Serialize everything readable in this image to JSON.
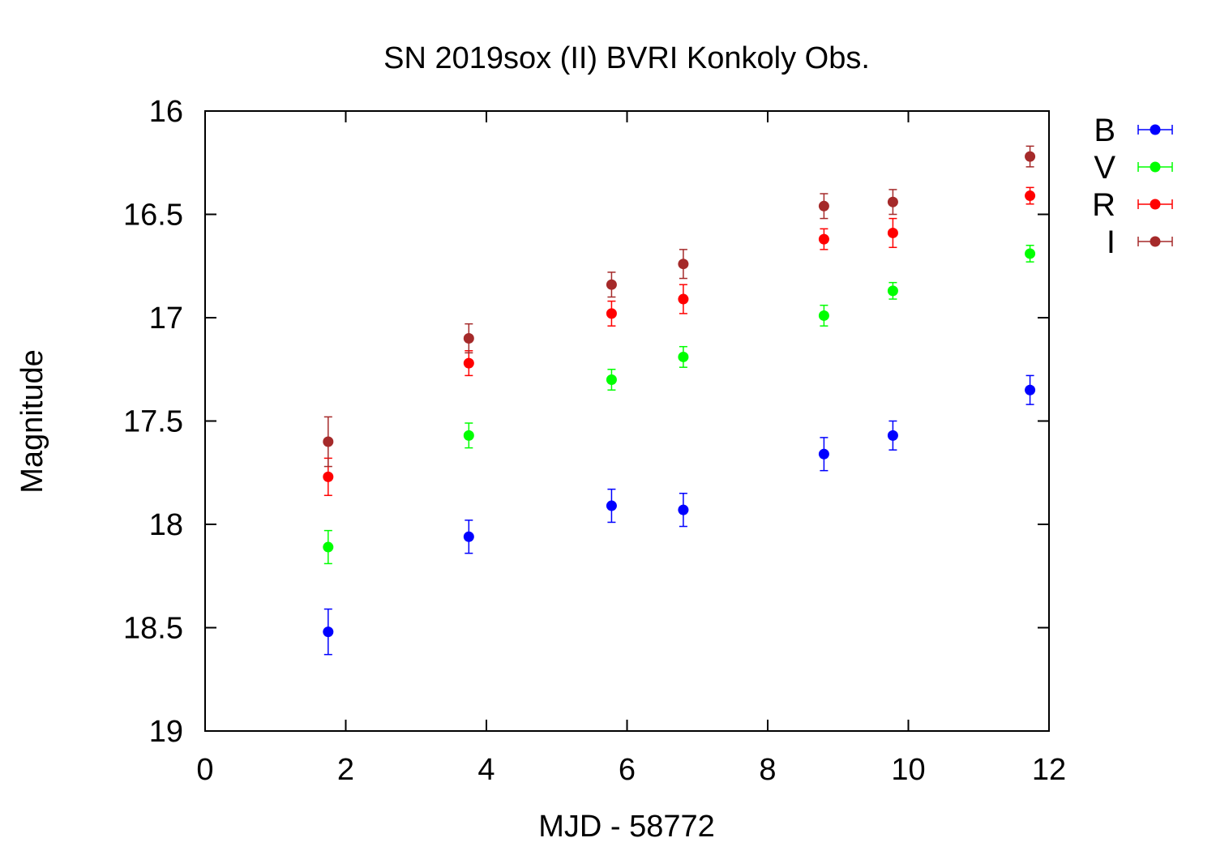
{
  "chart_data": {
    "type": "scatter",
    "title": "SN 2019sox (II) BVRI Konkoly Obs.",
    "xlabel": "MJD - 58772",
    "ylabel": "Magnitude",
    "xlim": [
      0,
      12
    ],
    "ylim": [
      16,
      19
    ],
    "y_inverted": true,
    "grid": false,
    "legend_position": "right",
    "x_ticks": [
      "0",
      "2",
      "4",
      "6",
      "8",
      "10",
      "12"
    ],
    "y_ticks": [
      "16",
      "16.5",
      "17",
      "17.5",
      "18",
      "18.5",
      "19"
    ],
    "x": [
      1.75,
      3.75,
      5.78,
      6.8,
      8.8,
      9.78,
      11.73
    ],
    "series": [
      {
        "name": "B",
        "color": "#0000ff",
        "values": [
          18.52,
          18.06,
          17.91,
          17.93,
          17.66,
          17.57,
          17.35
        ],
        "errors": [
          0.11,
          0.08,
          0.08,
          0.08,
          0.08,
          0.07,
          0.07
        ]
      },
      {
        "name": "V",
        "color": "#00ff00",
        "values": [
          18.11,
          17.57,
          17.3,
          17.19,
          16.99,
          16.87,
          16.69
        ],
        "errors": [
          0.08,
          0.06,
          0.05,
          0.05,
          0.05,
          0.04,
          0.04
        ]
      },
      {
        "name": "R",
        "color": "#ff0000",
        "values": [
          17.77,
          17.22,
          16.98,
          16.91,
          16.62,
          16.59,
          16.41
        ],
        "errors": [
          0.09,
          0.06,
          0.06,
          0.07,
          0.05,
          0.07,
          0.04
        ]
      },
      {
        "name": "I",
        "color": "#a52a2a",
        "values": [
          17.6,
          17.1,
          16.84,
          16.74,
          16.46,
          16.44,
          16.22
        ],
        "errors": [
          0.12,
          0.07,
          0.06,
          0.07,
          0.06,
          0.06,
          0.05
        ]
      }
    ]
  }
}
